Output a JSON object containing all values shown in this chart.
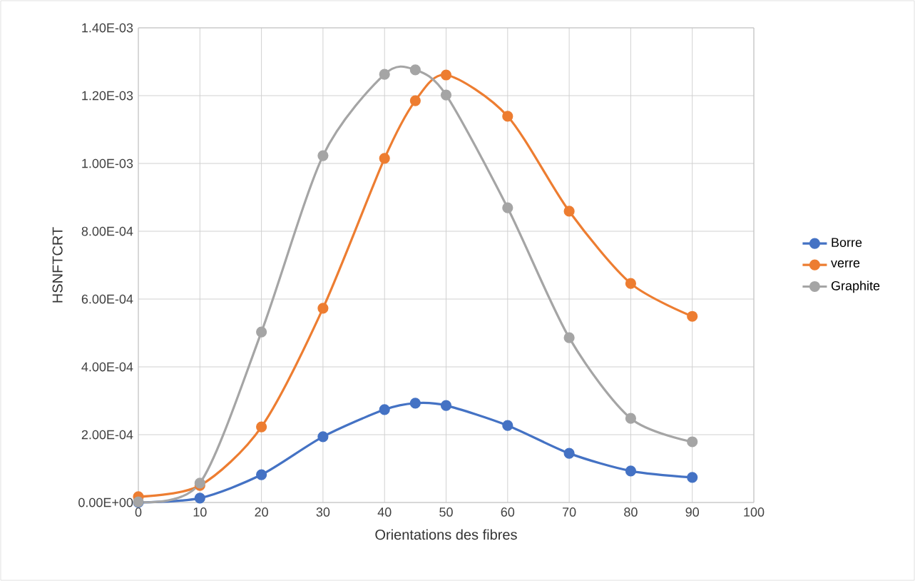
{
  "chart_data": {
    "type": "line",
    "xlabel": "Orientations des fibres",
    "ylabel": "HSNFTCRT",
    "x": [
      0,
      10,
      20,
      30,
      40,
      45,
      50,
      60,
      70,
      80,
      90
    ],
    "series": [
      {
        "name": "Borre",
        "color": "#4472c4",
        "values": [
          0.0,
          1.3e-05,
          8.2e-05,
          0.000194,
          0.000274,
          0.000293,
          0.000286,
          0.000227,
          0.000145,
          9.3e-05,
          7.4e-05
        ]
      },
      {
        "name": "verre",
        "color": "#ed7d31",
        "values": [
          1.7e-05,
          5e-05,
          0.000223,
          0.000573,
          0.001015,
          0.001185,
          0.001261,
          0.001139,
          0.000859,
          0.000646,
          0.000549
        ]
      },
      {
        "name": "Graphite",
        "color": "#a5a5a5",
        "values": [
          2e-06,
          5.7e-05,
          0.000503,
          0.001023,
          0.001263,
          0.001276,
          0.001202,
          0.000869,
          0.000486,
          0.000248,
          0.000179
        ]
      }
    ],
    "xlim": [
      0,
      100
    ],
    "xticks": [
      0,
      10,
      20,
      30,
      40,
      50,
      60,
      70,
      80,
      90,
      100
    ],
    "ylim": [
      0,
      0.0014
    ],
    "yticks": [
      {
        "value": 0,
        "label": "0.00E+00"
      },
      {
        "value": 0.0002,
        "label": "2.00E-04"
      },
      {
        "value": 0.0004,
        "label": "4.00E-04"
      },
      {
        "value": 0.0006,
        "label": "6.00E-04"
      },
      {
        "value": 0.0008,
        "label": "8.00E-04"
      },
      {
        "value": 0.001,
        "label": "1.00E-03"
      },
      {
        "value": 0.0012,
        "label": "1.20E-03"
      },
      {
        "value": 0.0014,
        "label": "1.40E-03"
      }
    ],
    "grid": true,
    "legend": "right",
    "marker": "circle",
    "line_style": "solid"
  }
}
